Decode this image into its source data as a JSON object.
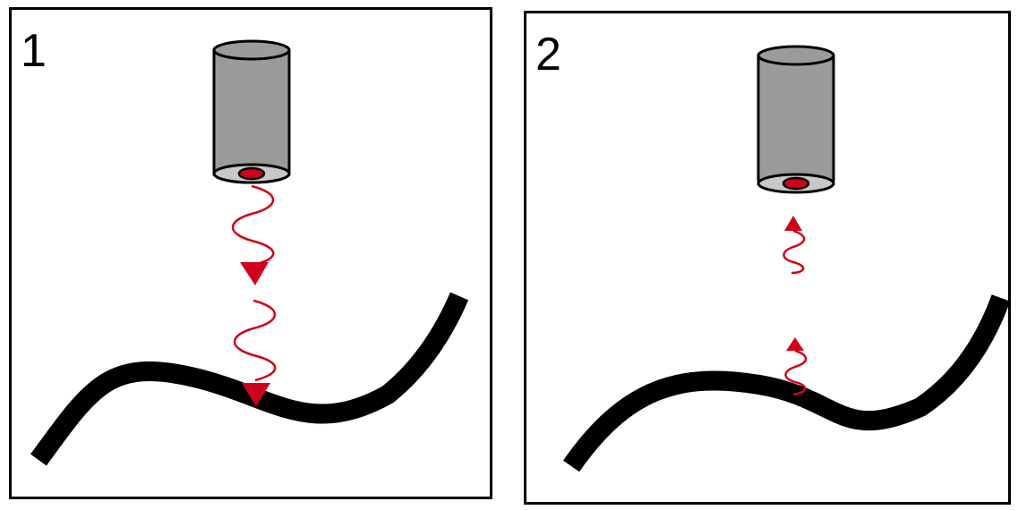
{
  "panels": [
    {
      "number": "1"
    },
    {
      "number": "2"
    }
  ],
  "colors": {
    "frame": "#000000",
    "sensor_body": "#9b9b9b",
    "sensor_face": "#c8c8c8",
    "beam": "#d0021b",
    "surface": "#000000"
  },
  "icons": [
    "sensor-probe-icon",
    "wave-arrow-icon",
    "surface-curve"
  ]
}
